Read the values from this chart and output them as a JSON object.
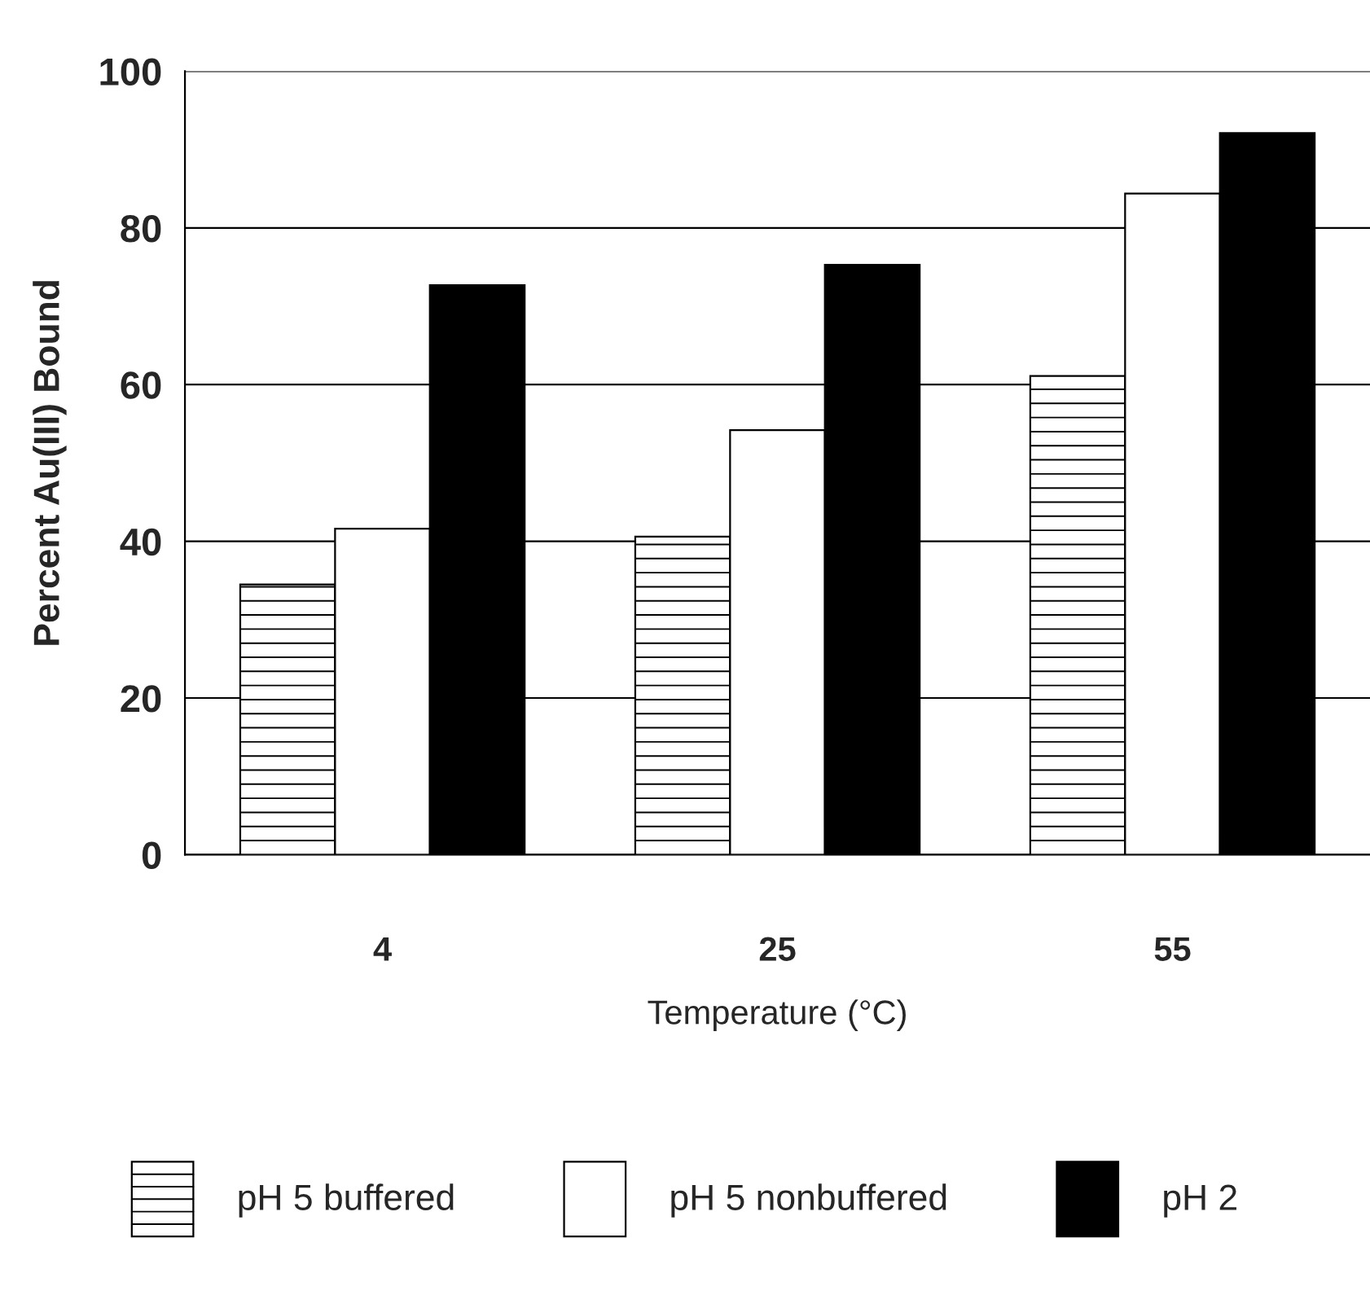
{
  "chart_data": {
    "type": "bar",
    "xlabel": "Temperature (°C)",
    "ylabel": "Percent Au(III) Bound",
    "categories": [
      "4",
      "25",
      "55"
    ],
    "series": [
      {
        "name": "pH 5 buffered",
        "color": "#ffffff",
        "values": [
          34.5,
          40.6,
          61.1
        ]
      },
      {
        "name": "pH 5 nonbuffered",
        "color": "#ffffff",
        "values": [
          41.6,
          54.2,
          84.4
        ]
      },
      {
        "name": "pH 2",
        "color": "#000000",
        "values": [
          72.7,
          75.3,
          92.1
        ]
      }
    ],
    "ylim": [
      0,
      100
    ],
    "yticks": [
      0,
      20,
      40,
      60,
      80,
      100
    ],
    "grid": "y",
    "legend": "bottom"
  }
}
